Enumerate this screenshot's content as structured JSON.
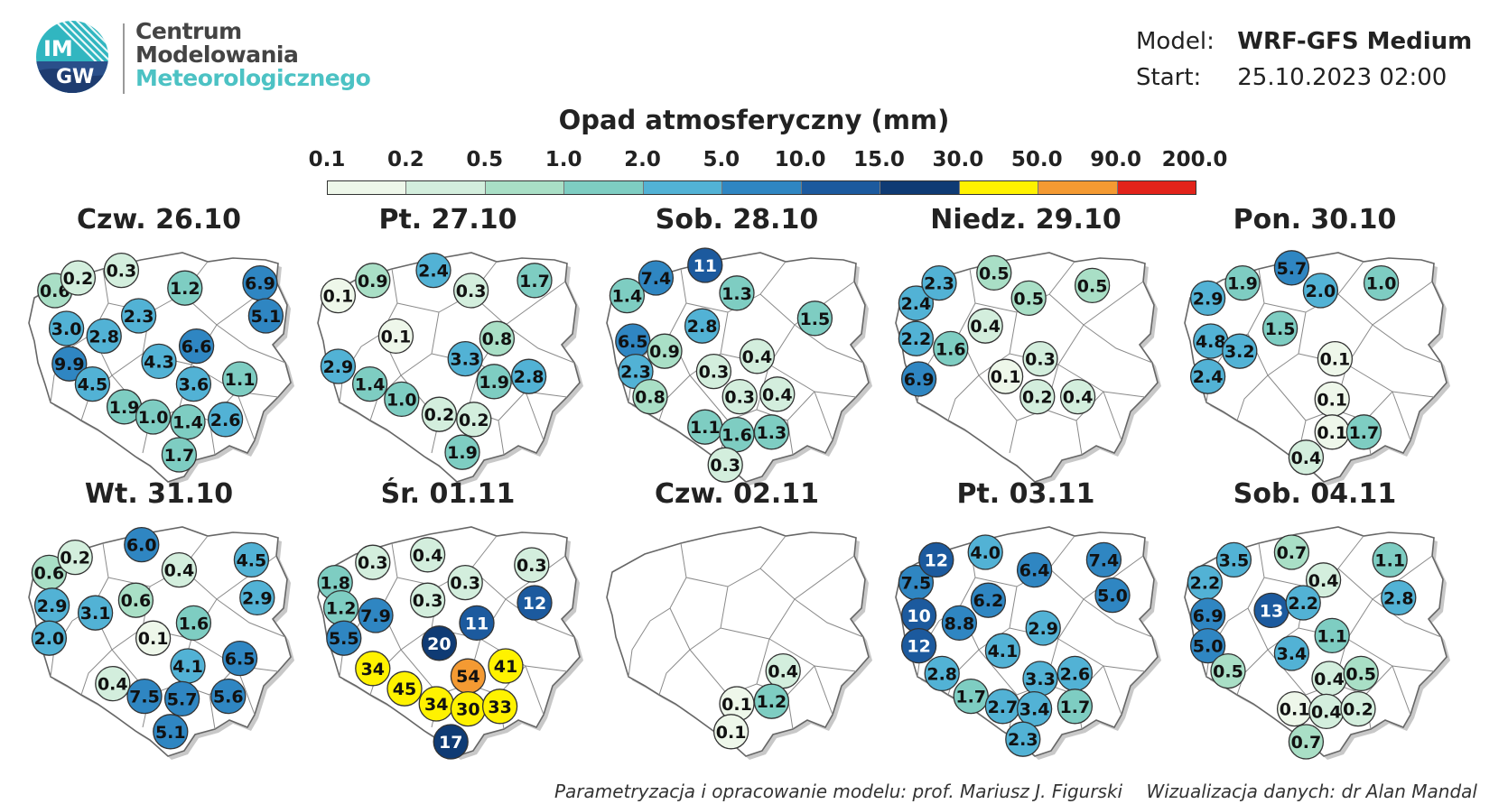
{
  "header": {
    "logo_text_top": "IM",
    "logo_text_bottom": "GW",
    "org_line1": "Centrum",
    "org_line2": "Modelowania",
    "org_line3": "Meteorologicznego",
    "model_label": "Model:",
    "model_value": "WRF-GFS Medium",
    "start_label": "Start:",
    "start_value": "25.10.2023 02:00"
  },
  "legend": {
    "title": "Opad atmosferyczny (mm)",
    "ticks": [
      "0.1",
      "0.2",
      "0.5",
      "1.0",
      "2.0",
      "5.0",
      "10.0",
      "15.0",
      "30.0",
      "50.0",
      "90.0",
      "200.0"
    ],
    "colors": [
      "#eef7ea",
      "#d3eedd",
      "#a9dfc6",
      "#7ecdc2",
      "#52b2d5",
      "#2f86c2",
      "#1c5a9e",
      "#0f3b74",
      "#fff200",
      "#f49a32",
      "#e2231a"
    ]
  },
  "panels": [
    {
      "title": "Czw. 26.10",
      "markers": [
        {
          "x": 0.14,
          "y": 0.2,
          "v": "0.6"
        },
        {
          "x": 0.22,
          "y": 0.15,
          "v": "0.2"
        },
        {
          "x": 0.37,
          "y": 0.12,
          "v": "0.3"
        },
        {
          "x": 0.59,
          "y": 0.19,
          "v": "1.2"
        },
        {
          "x": 0.85,
          "y": 0.17,
          "v": "6.9"
        },
        {
          "x": 0.87,
          "y": 0.3,
          "v": "5.1"
        },
        {
          "x": 0.43,
          "y": 0.3,
          "v": "2.3"
        },
        {
          "x": 0.18,
          "y": 0.35,
          "v": "3.0"
        },
        {
          "x": 0.31,
          "y": 0.38,
          "v": "2.8"
        },
        {
          "x": 0.63,
          "y": 0.42,
          "v": "6.6"
        },
        {
          "x": 0.5,
          "y": 0.48,
          "v": "4.3"
        },
        {
          "x": 0.19,
          "y": 0.49,
          "v": "9.9"
        },
        {
          "x": 0.62,
          "y": 0.57,
          "v": "3.6"
        },
        {
          "x": 0.78,
          "y": 0.55,
          "v": "1.1"
        },
        {
          "x": 0.27,
          "y": 0.57,
          "v": "4.5"
        },
        {
          "x": 0.38,
          "y": 0.66,
          "v": "1.9"
        },
        {
          "x": 0.48,
          "y": 0.7,
          "v": "1.0"
        },
        {
          "x": 0.6,
          "y": 0.72,
          "v": "1.4"
        },
        {
          "x": 0.73,
          "y": 0.71,
          "v": "2.6"
        },
        {
          "x": 0.57,
          "y": 0.85,
          "v": "1.7"
        }
      ]
    },
    {
      "title": "Pt. 27.10",
      "markers": [
        {
          "x": 0.12,
          "y": 0.22,
          "v": "0.1"
        },
        {
          "x": 0.24,
          "y": 0.16,
          "v": "0.9"
        },
        {
          "x": 0.45,
          "y": 0.12,
          "v": "2.4"
        },
        {
          "x": 0.58,
          "y": 0.2,
          "v": "0.3"
        },
        {
          "x": 0.8,
          "y": 0.16,
          "v": "1.7"
        },
        {
          "x": 0.32,
          "y": 0.38,
          "v": "0.1"
        },
        {
          "x": 0.56,
          "y": 0.47,
          "v": "3.3"
        },
        {
          "x": 0.67,
          "y": 0.39,
          "v": "0.8"
        },
        {
          "x": 0.12,
          "y": 0.5,
          "v": "2.9"
        },
        {
          "x": 0.23,
          "y": 0.57,
          "v": "1.4"
        },
        {
          "x": 0.34,
          "y": 0.63,
          "v": "1.0"
        },
        {
          "x": 0.47,
          "y": 0.69,
          "v": "0.2"
        },
        {
          "x": 0.59,
          "y": 0.71,
          "v": "0.2"
        },
        {
          "x": 0.66,
          "y": 0.56,
          "v": "1.9"
        },
        {
          "x": 0.78,
          "y": 0.54,
          "v": "2.8"
        },
        {
          "x": 0.55,
          "y": 0.84,
          "v": "1.9"
        }
      ]
    },
    {
      "title": "Sob. 28.10",
      "markers": [
        {
          "x": 0.12,
          "y": 0.22,
          "v": "1.4"
        },
        {
          "x": 0.22,
          "y": 0.15,
          "v": "7.4"
        },
        {
          "x": 0.39,
          "y": 0.1,
          "v": "11"
        },
        {
          "x": 0.5,
          "y": 0.21,
          "v": "1.3"
        },
        {
          "x": 0.38,
          "y": 0.34,
          "v": "2.8"
        },
        {
          "x": 0.77,
          "y": 0.31,
          "v": "1.5"
        },
        {
          "x": 0.14,
          "y": 0.4,
          "v": "6.5"
        },
        {
          "x": 0.25,
          "y": 0.44,
          "v": "0.9"
        },
        {
          "x": 0.15,
          "y": 0.52,
          "v": "2.3"
        },
        {
          "x": 0.57,
          "y": 0.46,
          "v": "0.4"
        },
        {
          "x": 0.42,
          "y": 0.52,
          "v": "0.3"
        },
        {
          "x": 0.2,
          "y": 0.62,
          "v": "0.8"
        },
        {
          "x": 0.51,
          "y": 0.62,
          "v": "0.3"
        },
        {
          "x": 0.64,
          "y": 0.61,
          "v": "0.4"
        },
        {
          "x": 0.39,
          "y": 0.74,
          "v": "1.1"
        },
        {
          "x": 0.5,
          "y": 0.77,
          "v": "1.6"
        },
        {
          "x": 0.62,
          "y": 0.76,
          "v": "1.3"
        },
        {
          "x": 0.46,
          "y": 0.89,
          "v": "0.3"
        }
      ]
    },
    {
      "title": "Niedz. 29.10",
      "markers": [
        {
          "x": 0.12,
          "y": 0.25,
          "v": "2.4"
        },
        {
          "x": 0.2,
          "y": 0.17,
          "v": "2.3"
        },
        {
          "x": 0.39,
          "y": 0.13,
          "v": "0.5"
        },
        {
          "x": 0.51,
          "y": 0.23,
          "v": "0.5"
        },
        {
          "x": 0.73,
          "y": 0.18,
          "v": "0.5"
        },
        {
          "x": 0.36,
          "y": 0.34,
          "v": "0.4"
        },
        {
          "x": 0.12,
          "y": 0.39,
          "v": "2.2"
        },
        {
          "x": 0.24,
          "y": 0.43,
          "v": "1.6"
        },
        {
          "x": 0.55,
          "y": 0.47,
          "v": "0.3"
        },
        {
          "x": 0.43,
          "y": 0.54,
          "v": "0.1"
        },
        {
          "x": 0.13,
          "y": 0.55,
          "v": "6.9"
        },
        {
          "x": 0.54,
          "y": 0.62,
          "v": "0.2"
        },
        {
          "x": 0.68,
          "y": 0.62,
          "v": "0.4"
        }
      ]
    },
    {
      "title": "Pon. 30.10",
      "markers": [
        {
          "x": 0.13,
          "y": 0.23,
          "v": "2.9"
        },
        {
          "x": 0.25,
          "y": 0.17,
          "v": "1.9"
        },
        {
          "x": 0.42,
          "y": 0.11,
          "v": "5.7"
        },
        {
          "x": 0.52,
          "y": 0.2,
          "v": "2.0"
        },
        {
          "x": 0.73,
          "y": 0.17,
          "v": "1.0"
        },
        {
          "x": 0.38,
          "y": 0.35,
          "v": "1.5"
        },
        {
          "x": 0.14,
          "y": 0.4,
          "v": "4.8"
        },
        {
          "x": 0.24,
          "y": 0.44,
          "v": "3.2"
        },
        {
          "x": 0.57,
          "y": 0.47,
          "v": "0.1"
        },
        {
          "x": 0.13,
          "y": 0.54,
          "v": "2.4"
        },
        {
          "x": 0.56,
          "y": 0.63,
          "v": "0.1"
        },
        {
          "x": 0.56,
          "y": 0.76,
          "v": "0.1"
        },
        {
          "x": 0.67,
          "y": 0.76,
          "v": "1.7"
        },
        {
          "x": 0.47,
          "y": 0.86,
          "v": "0.4"
        }
      ]
    },
    {
      "title": "Wt. 31.10",
      "markers": [
        {
          "x": 0.12,
          "y": 0.23,
          "v": "0.6"
        },
        {
          "x": 0.21,
          "y": 0.17,
          "v": "0.2"
        },
        {
          "x": 0.44,
          "y": 0.12,
          "v": "6.0"
        },
        {
          "x": 0.57,
          "y": 0.22,
          "v": "0.4"
        },
        {
          "x": 0.82,
          "y": 0.18,
          "v": "4.5"
        },
        {
          "x": 0.13,
          "y": 0.36,
          "v": "2.9"
        },
        {
          "x": 0.28,
          "y": 0.39,
          "v": "3.1"
        },
        {
          "x": 0.42,
          "y": 0.34,
          "v": "0.6"
        },
        {
          "x": 0.84,
          "y": 0.33,
          "v": "2.9"
        },
        {
          "x": 0.12,
          "y": 0.49,
          "v": "2.0"
        },
        {
          "x": 0.62,
          "y": 0.43,
          "v": "1.6"
        },
        {
          "x": 0.48,
          "y": 0.49,
          "v": "0.1"
        },
        {
          "x": 0.6,
          "y": 0.6,
          "v": "4.1"
        },
        {
          "x": 0.78,
          "y": 0.57,
          "v": "6.5"
        },
        {
          "x": 0.34,
          "y": 0.67,
          "v": "0.4"
        },
        {
          "x": 0.45,
          "y": 0.72,
          "v": "7.5"
        },
        {
          "x": 0.58,
          "y": 0.73,
          "v": "5.7"
        },
        {
          "x": 0.74,
          "y": 0.72,
          "v": "5.6"
        },
        {
          "x": 0.54,
          "y": 0.86,
          "v": "5.1"
        }
      ]
    },
    {
      "title": "Śr. 01.11",
      "markers": [
        {
          "x": 0.11,
          "y": 0.27,
          "v": "1.8"
        },
        {
          "x": 0.24,
          "y": 0.19,
          "v": "0.3"
        },
        {
          "x": 0.43,
          "y": 0.16,
          "v": "0.4"
        },
        {
          "x": 0.56,
          "y": 0.27,
          "v": "0.3"
        },
        {
          "x": 0.79,
          "y": 0.2,
          "v": "0.3"
        },
        {
          "x": 0.43,
          "y": 0.34,
          "v": "0.3"
        },
        {
          "x": 0.25,
          "y": 0.4,
          "v": "7.9"
        },
        {
          "x": 0.8,
          "y": 0.35,
          "v": "12"
        },
        {
          "x": 0.13,
          "y": 0.37,
          "v": "1.2"
        },
        {
          "x": 0.6,
          "y": 0.43,
          "v": "11"
        },
        {
          "x": 0.47,
          "y": 0.51,
          "v": "20"
        },
        {
          "x": 0.14,
          "y": 0.49,
          "v": "5.5"
        },
        {
          "x": 0.24,
          "y": 0.61,
          "v": "34"
        },
        {
          "x": 0.57,
          "y": 0.64,
          "v": "54"
        },
        {
          "x": 0.7,
          "y": 0.6,
          "v": "41"
        },
        {
          "x": 0.35,
          "y": 0.69,
          "v": "45"
        },
        {
          "x": 0.46,
          "y": 0.75,
          "v": "34"
        },
        {
          "x": 0.57,
          "y": 0.77,
          "v": "30"
        },
        {
          "x": 0.68,
          "y": 0.76,
          "v": "33"
        },
        {
          "x": 0.51,
          "y": 0.9,
          "v": "17"
        }
      ]
    },
    {
      "title": "Czw. 02.11",
      "markers": [
        {
          "x": 0.66,
          "y": 0.62,
          "v": "0.4"
        },
        {
          "x": 0.5,
          "y": 0.75,
          "v": "0.1"
        },
        {
          "x": 0.62,
          "y": 0.74,
          "v": "1.2"
        },
        {
          "x": 0.48,
          "y": 0.86,
          "v": "0.1"
        }
      ]
    },
    {
      "title": "Pt. 03.11",
      "markers": [
        {
          "x": 0.12,
          "y": 0.27,
          "v": "7.5"
        },
        {
          "x": 0.19,
          "y": 0.18,
          "v": "12"
        },
        {
          "x": 0.36,
          "y": 0.15,
          "v": "4.0"
        },
        {
          "x": 0.53,
          "y": 0.22,
          "v": "6.4"
        },
        {
          "x": 0.77,
          "y": 0.18,
          "v": "7.4"
        },
        {
          "x": 0.37,
          "y": 0.34,
          "v": "6.2"
        },
        {
          "x": 0.8,
          "y": 0.32,
          "v": "5.0"
        },
        {
          "x": 0.13,
          "y": 0.4,
          "v": "10"
        },
        {
          "x": 0.27,
          "y": 0.43,
          "v": "8.8"
        },
        {
          "x": 0.56,
          "y": 0.45,
          "v": "2.9"
        },
        {
          "x": 0.13,
          "y": 0.52,
          "v": "12"
        },
        {
          "x": 0.42,
          "y": 0.54,
          "v": "4.1"
        },
        {
          "x": 0.21,
          "y": 0.63,
          "v": "2.8"
        },
        {
          "x": 0.55,
          "y": 0.65,
          "v": "3.3"
        },
        {
          "x": 0.67,
          "y": 0.63,
          "v": "2.6"
        },
        {
          "x": 0.31,
          "y": 0.72,
          "v": "1.7"
        },
        {
          "x": 0.42,
          "y": 0.76,
          "v": "2.7"
        },
        {
          "x": 0.53,
          "y": 0.77,
          "v": "3.4"
        },
        {
          "x": 0.67,
          "y": 0.76,
          "v": "1.7"
        },
        {
          "x": 0.49,
          "y": 0.89,
          "v": "2.3"
        }
      ]
    },
    {
      "title": "Sob. 04.11",
      "markers": [
        {
          "x": 0.12,
          "y": 0.27,
          "v": "2.2"
        },
        {
          "x": 0.22,
          "y": 0.18,
          "v": "3.5"
        },
        {
          "x": 0.42,
          "y": 0.15,
          "v": "0.7"
        },
        {
          "x": 0.53,
          "y": 0.26,
          "v": "0.4"
        },
        {
          "x": 0.76,
          "y": 0.18,
          "v": "1.1"
        },
        {
          "x": 0.79,
          "y": 0.33,
          "v": "2.8"
        },
        {
          "x": 0.35,
          "y": 0.38,
          "v": "13"
        },
        {
          "x": 0.46,
          "y": 0.35,
          "v": "2.2"
        },
        {
          "x": 0.13,
          "y": 0.4,
          "v": "6.9"
        },
        {
          "x": 0.56,
          "y": 0.48,
          "v": "1.1"
        },
        {
          "x": 0.13,
          "y": 0.52,
          "v": "5.0"
        },
        {
          "x": 0.42,
          "y": 0.55,
          "v": "3.4"
        },
        {
          "x": 0.2,
          "y": 0.62,
          "v": "0.5"
        },
        {
          "x": 0.55,
          "y": 0.65,
          "v": "0.4"
        },
        {
          "x": 0.66,
          "y": 0.63,
          "v": "0.5"
        },
        {
          "x": 0.43,
          "y": 0.77,
          "v": "0.1"
        },
        {
          "x": 0.54,
          "y": 0.78,
          "v": "0.4"
        },
        {
          "x": 0.65,
          "y": 0.77,
          "v": "0.2"
        },
        {
          "x": 0.47,
          "y": 0.9,
          "v": "0.7"
        }
      ]
    }
  ],
  "credits": {
    "left": "Parametryzacja i opracowanie modelu: prof. Mariusz J. Figurski",
    "right": "Wizualizacja danych: dr Alan Mandal"
  }
}
